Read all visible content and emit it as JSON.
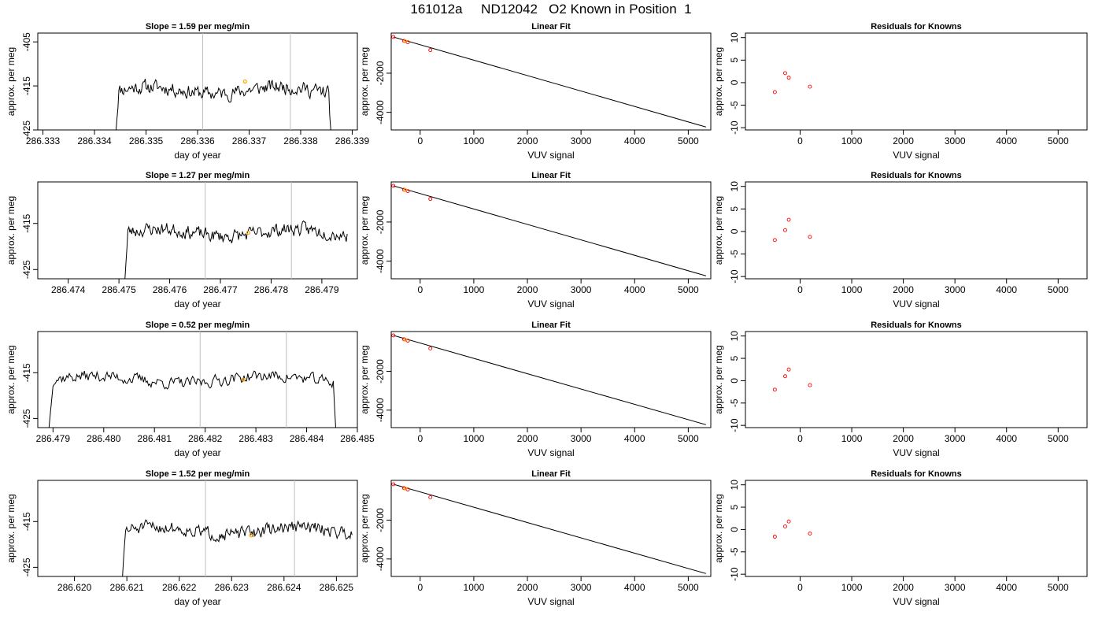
{
  "page": {
    "title": "161012a     ND12042   O2 Known in Position  1"
  },
  "colors": {
    "line": "#000000",
    "vline": "#bebebe",
    "marker_orange": "#ffa500",
    "marker_red": "#ff0000",
    "axis": "#000000"
  },
  "chart_data": [
    {
      "panel": "row1-time",
      "type": "line",
      "title": "Slope =  1.59  per meg/min",
      "xlabel": "day of year",
      "ylabel": "approx. per meg",
      "xlim": [
        286.3329,
        286.3391
      ],
      "ylim": [
        -425,
        -403
      ],
      "xticks": [
        286.333,
        286.334,
        286.335,
        286.336,
        286.337,
        286.338,
        286.339
      ],
      "xtick_labels": [
        "286.333",
        "286.334",
        "286.335",
        "286.336",
        "286.337",
        "286.338",
        "286.339"
      ],
      "yticks": [
        -425,
        -415,
        -405
      ],
      "ytick_labels": [
        "-425",
        "-415",
        "-405"
      ],
      "vlines": [
        286.3361,
        286.3378
      ],
      "series_start": 286.3344,
      "series_end": 286.3386,
      "baseline": -416,
      "noise": 2.5,
      "seed": 11,
      "highlight": {
        "x": 286.33692,
        "y": -414
      }
    },
    {
      "panel": "row1-fit",
      "type": "scatter",
      "title": "Linear Fit",
      "xlabel": "VUV signal",
      "ylabel": "approx. per meg",
      "xlim": [
        -540,
        5420
      ],
      "ylim": [
        -4900,
        50
      ],
      "xticks": [
        0,
        1000,
        2000,
        3000,
        4000,
        5000
      ],
      "xtick_labels": [
        "0",
        "1000",
        "2000",
        "3000",
        "4000",
        "5000"
      ],
      "yticks": [
        -4000,
        -2000
      ],
      "ytick_labels": [
        "-4000",
        "-2000"
      ],
      "points": [
        [
          -500,
          -150
        ],
        [
          -300,
          -350
        ],
        [
          -230,
          -420
        ],
        [
          190,
          -820
        ]
      ],
      "orange_points": [
        [
          -280,
          -370
        ]
      ],
      "fit_line": [
        [
          -500,
          -150
        ],
        [
          5330,
          -4750
        ]
      ]
    },
    {
      "panel": "row1-resid",
      "type": "scatter",
      "title": "Residuals for Knowns",
      "xlabel": "VUV signal",
      "ylabel": "approx. per meg",
      "xlim": [
        -1060,
        5560
      ],
      "ylim": [
        -10.5,
        11
      ],
      "xticks": [
        0,
        1000,
        2000,
        3000,
        4000,
        5000
      ],
      "xtick_labels": [
        "0",
        "1000",
        "2000",
        "3000",
        "4000",
        "5000"
      ],
      "yticks": [
        -10,
        -5,
        0,
        5,
        10
      ],
      "ytick_labels": [
        "-10",
        "-5",
        "0",
        "5",
        "10"
      ],
      "points": [
        [
          -490,
          -2.1
        ],
        [
          -290,
          2.1
        ],
        [
          -220,
          1.1
        ],
        [
          190,
          -0.9
        ]
      ]
    },
    {
      "panel": "row2-time",
      "type": "line",
      "title": "Slope =  1.27  per meg/min",
      "xlabel": "day of year",
      "ylabel": "approx. per meg",
      "xlim": [
        286.4734,
        286.4797
      ],
      "ylim": [
        -427,
        -406
      ],
      "xticks": [
        286.474,
        286.475,
        286.476,
        286.477,
        286.478,
        286.479
      ],
      "xtick_labels": [
        "286.474",
        "286.475",
        "286.476",
        "286.477",
        "286.478",
        "286.479"
      ],
      "yticks": [
        -425,
        -415
      ],
      "ytick_labels": [
        "-425",
        "-415"
      ],
      "vlines": [
        286.4767,
        286.4784
      ],
      "series_start": 286.4751,
      "series_end": 286.4795,
      "baseline": -417,
      "noise": 2.3,
      "seed": 23,
      "highlight": {
        "x": 286.47755,
        "y": -417
      }
    },
    {
      "panel": "row2-fit",
      "type": "scatter",
      "title": "Linear Fit",
      "xlabel": "VUV signal",
      "ylabel": "approx. per meg",
      "xlim": [
        -540,
        5420
      ],
      "ylim": [
        -4900,
        50
      ],
      "xticks": [
        0,
        1000,
        2000,
        3000,
        4000,
        5000
      ],
      "xtick_labels": [
        "0",
        "1000",
        "2000",
        "3000",
        "4000",
        "5000"
      ],
      "yticks": [
        -4000,
        -2000
      ],
      "ytick_labels": [
        "-4000",
        "-2000"
      ],
      "points": [
        [
          -500,
          -150
        ],
        [
          -300,
          -350
        ],
        [
          -230,
          -420
        ],
        [
          190,
          -820
        ]
      ],
      "orange_points": [
        [
          -280,
          -370
        ]
      ],
      "fit_line": [
        [
          -500,
          -150
        ],
        [
          5330,
          -4750
        ]
      ]
    },
    {
      "panel": "row2-resid",
      "type": "scatter",
      "title": "Residuals for Knowns",
      "xlabel": "VUV signal",
      "ylabel": "approx. per meg",
      "xlim": [
        -1060,
        5560
      ],
      "ylim": [
        -10.5,
        11
      ],
      "xticks": [
        0,
        1000,
        2000,
        3000,
        4000,
        5000
      ],
      "xtick_labels": [
        "0",
        "1000",
        "2000",
        "3000",
        "4000",
        "5000"
      ],
      "yticks": [
        -10,
        -5,
        0,
        5,
        10
      ],
      "ytick_labels": [
        "-10",
        "-5",
        "0",
        "5",
        "10"
      ],
      "points": [
        [
          -490,
          -1.9
        ],
        [
          -290,
          0.3
        ],
        [
          -220,
          2.6
        ],
        [
          190,
          -1.2
        ]
      ]
    },
    {
      "panel": "row3-time",
      "type": "line",
      "title": "Slope =  0.52  per meg/min",
      "xlabel": "day of year",
      "ylabel": "approx. per meg",
      "xlim": [
        286.4787,
        286.485
      ],
      "ylim": [
        -427,
        -406
      ],
      "xticks": [
        286.479,
        286.48,
        286.481,
        286.482,
        286.483,
        286.484,
        286.485
      ],
      "xtick_labels": [
        "286.479",
        "286.480",
        "286.481",
        "286.482",
        "286.483",
        "286.484",
        "286.485"
      ],
      "yticks": [
        -425,
        -415
      ],
      "ytick_labels": [
        "-425",
        "-415"
      ],
      "vlines": [
        286.4819,
        286.4836
      ],
      "series_start": 286.4789,
      "series_end": 286.4846,
      "baseline": -416.5,
      "noise": 2.0,
      "seed": 37,
      "highlight": {
        "x": 286.48275,
        "y": -416.5
      }
    },
    {
      "panel": "row3-fit",
      "type": "scatter",
      "title": "Linear Fit",
      "xlabel": "VUV signal",
      "ylabel": "approx. per meg",
      "xlim": [
        -540,
        5420
      ],
      "ylim": [
        -4900,
        50
      ],
      "xticks": [
        0,
        1000,
        2000,
        3000,
        4000,
        5000
      ],
      "xtick_labels": [
        "0",
        "1000",
        "2000",
        "3000",
        "4000",
        "5000"
      ],
      "yticks": [
        -4000,
        -2000
      ],
      "ytick_labels": [
        "-4000",
        "-2000"
      ],
      "points": [
        [
          -500,
          -150
        ],
        [
          -300,
          -350
        ],
        [
          -230,
          -420
        ],
        [
          190,
          -820
        ]
      ],
      "orange_points": [
        [
          -280,
          -370
        ]
      ],
      "fit_line": [
        [
          -500,
          -150
        ],
        [
          5330,
          -4750
        ]
      ]
    },
    {
      "panel": "row3-resid",
      "type": "scatter",
      "title": "Residuals for Knowns",
      "xlabel": "VUV signal",
      "ylabel": "approx. per meg",
      "xlim": [
        -1060,
        5560
      ],
      "ylim": [
        -10.5,
        11
      ],
      "xticks": [
        0,
        1000,
        2000,
        3000,
        4000,
        5000
      ],
      "xtick_labels": [
        "0",
        "1000",
        "2000",
        "3000",
        "4000",
        "5000"
      ],
      "yticks": [
        -10,
        -5,
        0,
        5,
        10
      ],
      "ytick_labels": [
        "-10",
        "-5",
        "0",
        "5",
        "10"
      ],
      "points": [
        [
          -490,
          -2.0
        ],
        [
          -290,
          1.0
        ],
        [
          -220,
          2.5
        ],
        [
          190,
          -1.0
        ]
      ]
    },
    {
      "panel": "row4-time",
      "type": "line",
      "title": "Slope =  1.52  per meg/min",
      "xlabel": "day of year",
      "ylabel": "approx. per meg",
      "xlim": [
        286.6193,
        286.6254
      ],
      "ylim": [
        -427,
        -406
      ],
      "xticks": [
        286.62,
        286.621,
        286.622,
        286.623,
        286.624,
        286.625
      ],
      "xtick_labels": [
        "286.620",
        "286.621",
        "286.622",
        "286.623",
        "286.624",
        "286.625"
      ],
      "yticks": [
        -425,
        -415
      ],
      "ytick_labels": [
        "-425",
        "-415"
      ],
      "vlines": [
        286.6225,
        286.6242
      ],
      "series_start": 286.6209,
      "series_end": 286.6253,
      "baseline": -417,
      "noise": 2.2,
      "seed": 51,
      "highlight": {
        "x": 286.62337,
        "y": -418
      }
    },
    {
      "panel": "row4-fit",
      "type": "scatter",
      "title": "Linear Fit",
      "xlabel": "VUV signal",
      "ylabel": "approx. per meg",
      "xlim": [
        -540,
        5420
      ],
      "ylim": [
        -4900,
        50
      ],
      "xticks": [
        0,
        1000,
        2000,
        3000,
        4000,
        5000
      ],
      "xtick_labels": [
        "0",
        "1000",
        "2000",
        "3000",
        "4000",
        "5000"
      ],
      "yticks": [
        -4000,
        -2000
      ],
      "ytick_labels": [
        "-4000",
        "-2000"
      ],
      "points": [
        [
          -500,
          -150
        ],
        [
          -300,
          -350
        ],
        [
          -230,
          -420
        ],
        [
          190,
          -820
        ]
      ],
      "orange_points": [
        [
          -280,
          -370
        ]
      ],
      "fit_line": [
        [
          -500,
          -150
        ],
        [
          5330,
          -4750
        ]
      ]
    },
    {
      "panel": "row4-resid",
      "type": "scatter",
      "title": "Residuals for Knowns",
      "xlabel": "VUV signal",
      "ylabel": "approx. per meg",
      "xlim": [
        -1060,
        5560
      ],
      "ylim": [
        -10.5,
        11
      ],
      "xticks": [
        0,
        1000,
        2000,
        3000,
        4000,
        5000
      ],
      "xtick_labels": [
        "0",
        "1000",
        "2000",
        "3000",
        "4000",
        "5000"
      ],
      "yticks": [
        -10,
        -5,
        0,
        5,
        10
      ],
      "ytick_labels": [
        "-10",
        "-5",
        "0",
        "5",
        "10"
      ],
      "points": [
        [
          -490,
          -1.6
        ],
        [
          -290,
          0.7
        ],
        [
          -220,
          1.8
        ],
        [
          190,
          -0.9
        ]
      ]
    }
  ]
}
